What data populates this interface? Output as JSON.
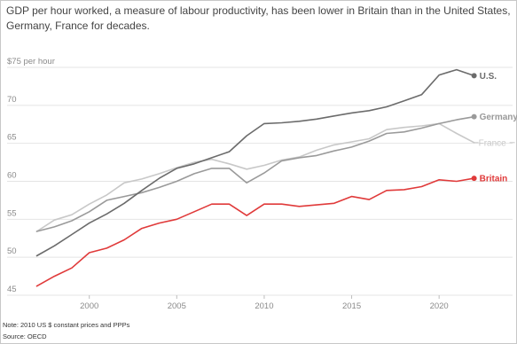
{
  "title": "GDP per hour worked, a measure of labour productivity, has been lower in Britain than in the United States, Germany, France for decades.",
  "note": "Note: 2010 US $ constant prices and PPPs",
  "source": "Source: OECD",
  "chart_data": {
    "type": "line",
    "title": "GDP per hour worked, a measure of labour productivity, has been lower in Britain than in the United States, Germany, France for decades.",
    "ylabel": "$75 per hour",
    "xlabel": "",
    "ylim": [
      45,
      75
    ],
    "xlim": [
      1995.3,
      2024.2
    ],
    "yticks": [
      45,
      50,
      55,
      60,
      65,
      70,
      75
    ],
    "ytick_labels": [
      "45",
      "50",
      "55",
      "60",
      "65",
      "70",
      "$75 per hour"
    ],
    "xticks": [
      2000,
      2005,
      2010,
      2015,
      2020
    ],
    "grid": true,
    "legend": "direct labels at line ends",
    "x": [
      1997,
      1998,
      1999,
      2000,
      2001,
      2002,
      2003,
      2004,
      2005,
      2006,
      2007,
      2008,
      2009,
      2010,
      2011,
      2012,
      2013,
      2014,
      2015,
      2016,
      2017,
      2018,
      2019,
      2020,
      2021,
      2022
    ],
    "series": [
      {
        "name": "U.S.",
        "color": "#6b6b6b",
        "values": [
          50.2,
          51.5,
          53.0,
          54.5,
          55.7,
          57.1,
          58.8,
          60.4,
          61.7,
          62.3,
          63.1,
          63.9,
          66.0,
          67.6,
          67.7,
          67.9,
          68.2,
          68.6,
          69.0,
          69.3,
          69.8,
          70.6,
          71.4,
          74.0,
          74.7,
          73.9
        ]
      },
      {
        "name": "Germany",
        "color": "#9a9a9a",
        "values": [
          53.4,
          54.0,
          54.8,
          56.0,
          57.5,
          58.0,
          58.5,
          59.2,
          60.0,
          61.0,
          61.7,
          61.7,
          59.8,
          61.1,
          62.7,
          63.1,
          63.4,
          64.0,
          64.5,
          65.3,
          66.3,
          66.5,
          67.0,
          67.6,
          68.1,
          68.5
        ]
      },
      {
        "name": "France",
        "color": "#c8c8c8",
        "values": [
          53.4,
          54.9,
          55.6,
          57.0,
          58.2,
          59.8,
          60.3,
          61.0,
          61.8,
          62.5,
          62.9,
          62.3,
          61.6,
          62.1,
          62.8,
          63.2,
          64.1,
          64.8,
          65.2,
          65.6,
          66.8,
          67.1,
          67.3,
          67.6,
          66.3,
          65.1
        ]
      },
      {
        "name": "Britain",
        "color": "#e03a3a",
        "values": [
          46.2,
          47.5,
          48.6,
          50.6,
          51.2,
          52.3,
          53.8,
          54.5,
          55.0,
          56.0,
          57.0,
          57.0,
          55.5,
          57.0,
          57.0,
          56.7,
          56.9,
          57.1,
          58.0,
          57.6,
          58.8,
          58.9,
          59.3,
          60.2,
          60.0,
          60.4
        ]
      }
    ]
  }
}
